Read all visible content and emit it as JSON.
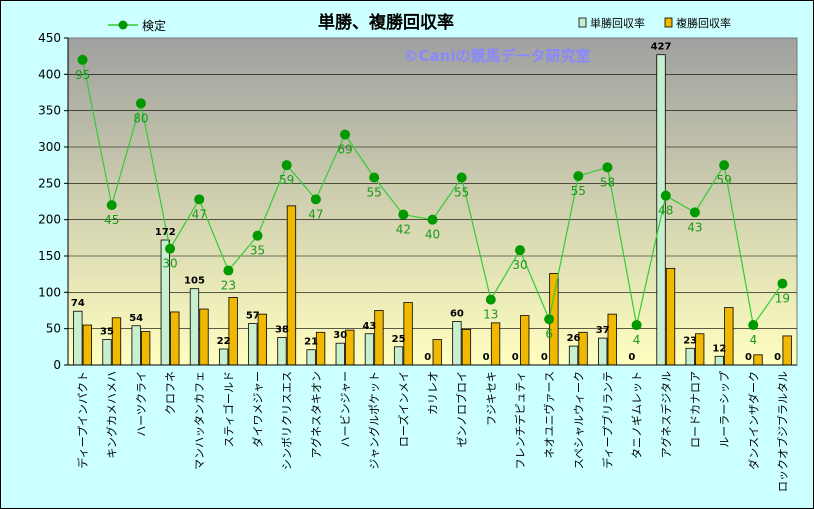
{
  "chart_data": {
    "type": "bar",
    "title": "単勝、複勝回収率",
    "watermark": "©Caniの競馬データ研究室",
    "ylim": [
      0,
      450
    ],
    "yticks": [
      "0",
      "50",
      "100",
      "150",
      "200",
      "250",
      "300",
      "350",
      "400",
      "450"
    ],
    "legend": {
      "line_label": "検定",
      "bar1_label": "単勝回収率",
      "bar2_label": "複勝回収率"
    },
    "colors": {
      "plot_bg_top": "#a0a0a0",
      "plot_bg_bottom": "#ffffc0",
      "bar1_fill": "#c8f0d0",
      "bar2_fill": "#f0b800",
      "line": "#33cc33",
      "marker": "#009900",
      "frame_bg": "#ccffff"
    },
    "categories": [
      "ディープインパクト",
      "キングカメハメハ",
      "ハーツクライ",
      "クロフネ",
      "マンハッタンカフェ",
      "スティゴールド",
      "ダイワメジャー",
      "シンボリクリスエス",
      "アグネスタキオン",
      "ハービンジャー",
      "ジャングルポケット",
      "ローズインメイ",
      "カリレオ",
      "ゼンノロブロイ",
      "フジキセキ",
      "フレンチデピュティ",
      "ネオユニヴァース",
      "スペシャルウィーク",
      "ディープブリランテ",
      "タニノギムレット",
      "アグネスデジタル",
      "ロードカナロア",
      "ルーラーシップ",
      "ダンスインザダーク",
      "ロックオブジブラルタル"
    ],
    "series": [
      {
        "name": "単勝回収率",
        "type": "bar",
        "values": [
          74,
          35,
          54,
          172,
          105,
          22,
          57,
          38,
          21,
          30,
          43,
          25,
          0,
          60,
          0,
          0,
          0,
          26,
          37,
          0,
          427,
          23,
          12,
          0,
          0
        ]
      },
      {
        "name": "複勝回収率",
        "type": "bar",
        "values": [
          55,
          65,
          46,
          73,
          77,
          93,
          70,
          219,
          45,
          48,
          75,
          86,
          35,
          49,
          58,
          68,
          126,
          45,
          70,
          0,
          133,
          43,
          79,
          14,
          40
        ]
      },
      {
        "name": "検定",
        "type": "line",
        "values": [
          420,
          220,
          360,
          160,
          228,
          130,
          178,
          275,
          228,
          317,
          258,
          207,
          200,
          258,
          90,
          158,
          63,
          260,
          272,
          55,
          233,
          210,
          275,
          55,
          112
        ]
      }
    ],
    "point_labels": [
      "95",
      "45",
      "80",
      "30",
      "47",
      "23",
      "35",
      "59",
      "47",
      "69",
      "55",
      "42",
      "40",
      "55",
      "13",
      "30",
      "6",
      "55",
      "58",
      "4",
      "48",
      "43",
      "59",
      "4",
      "19"
    ],
    "bar1_labels": [
      "74",
      "35",
      "54",
      "172",
      "105",
      "22",
      "57",
      "38",
      "21",
      "30",
      "43",
      "25",
      "0",
      "60",
      "0",
      "0",
      "0",
      "26",
      "37",
      "0",
      "427",
      "23",
      "12",
      "0",
      "0"
    ]
  }
}
